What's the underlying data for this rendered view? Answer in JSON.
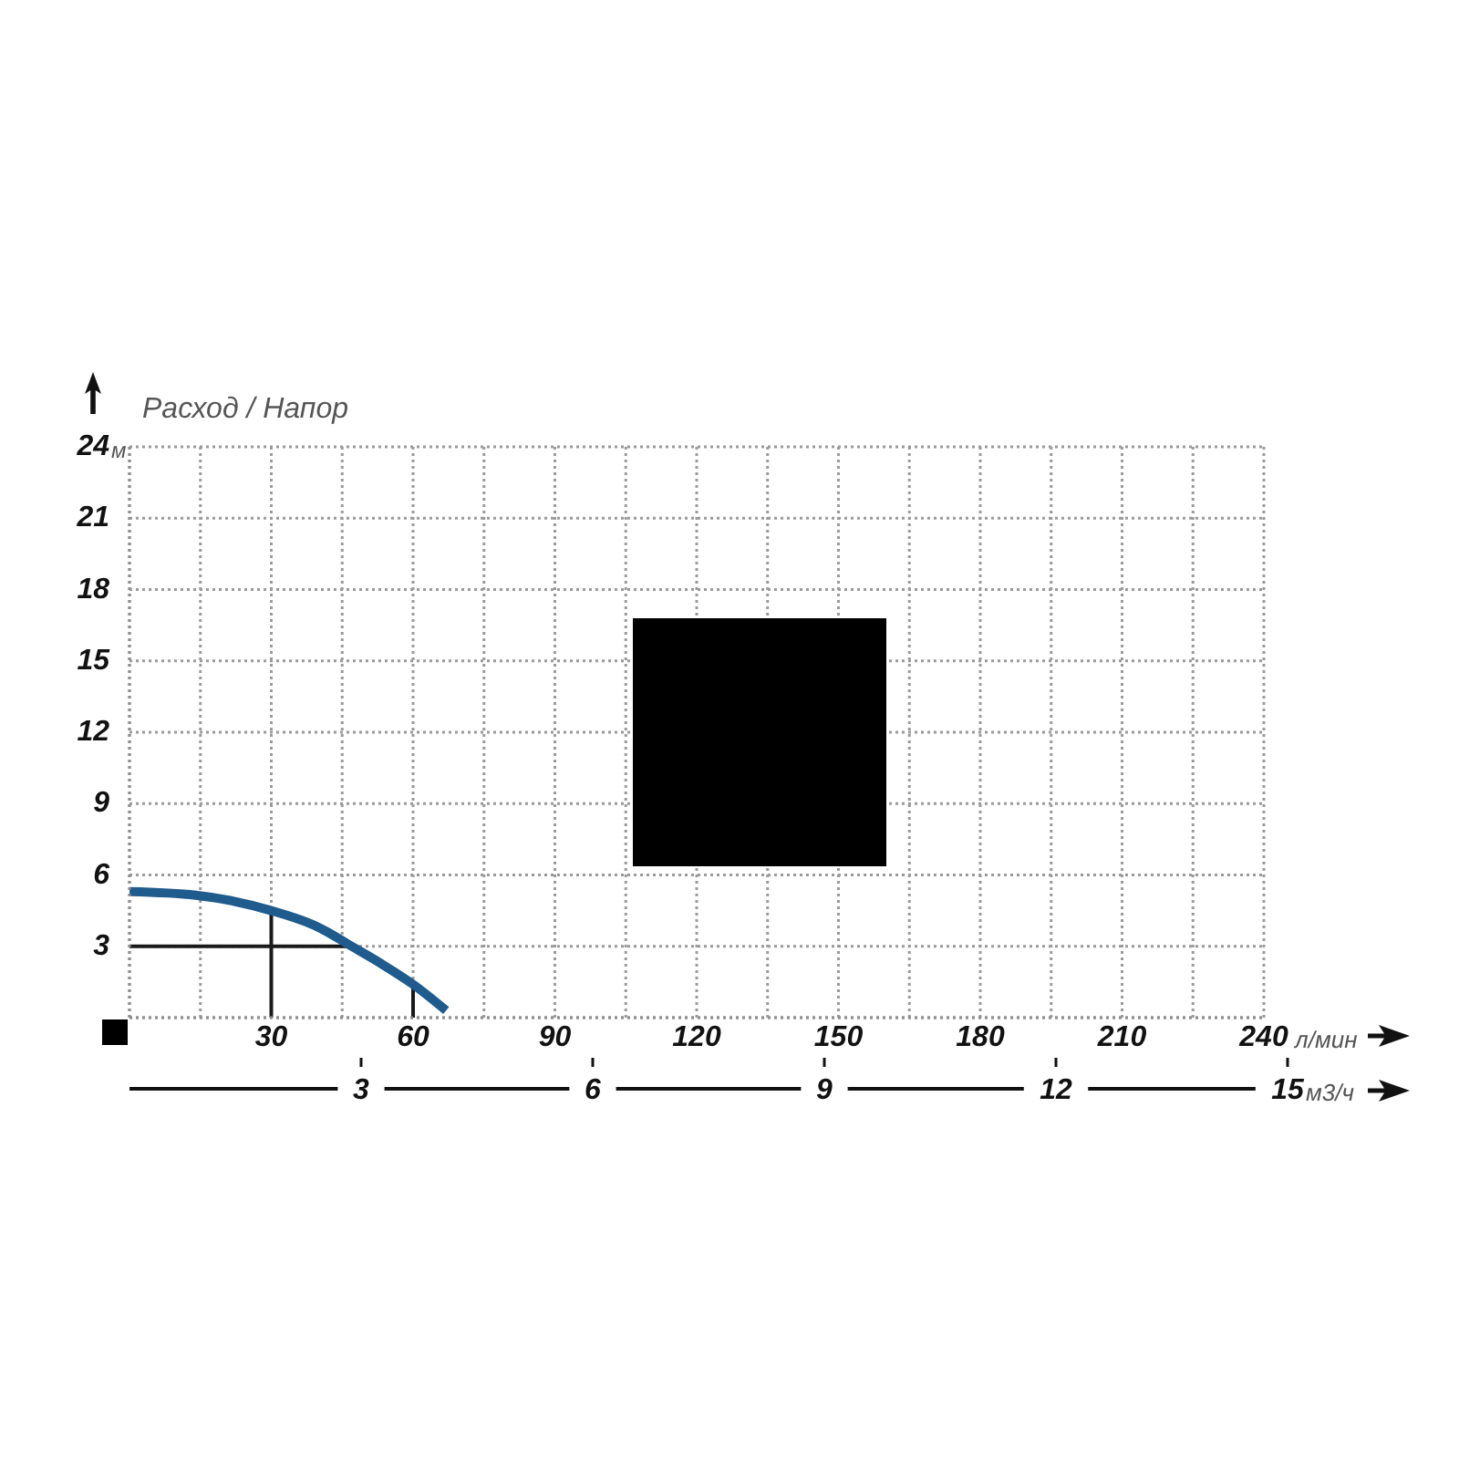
{
  "chart_data": {
    "type": "line",
    "title": "Расход / Напор",
    "xlabel": "л/мин",
    "ylabel": "м",
    "x2label": "м3/ч",
    "xlim": [
      0,
      240
    ],
    "xticks": [
      {
        "value": 15,
        "label": null
      },
      30,
      {
        "value": 45,
        "label": null
      },
      60,
      {
        "value": 75,
        "label": null
      },
      90,
      {
        "value": 105,
        "label": null
      },
      120,
      {
        "value": 135,
        "label": null
      },
      150,
      {
        "value": 165,
        "label": null
      },
      180,
      {
        "value": 195,
        "label": null
      },
      210,
      {
        "value": 225,
        "label": null
      },
      240
    ],
    "ylim": [
      0,
      24
    ],
    "yticks": [
      3,
      6,
      9,
      12,
      15,
      18,
      21,
      24
    ],
    "x2lim": [
      0,
      15
    ],
    "x2ticks": [
      3,
      6,
      9,
      12,
      15
    ],
    "grid": true,
    "series": [
      {
        "color": "#1a1a1a",
        "x": [
          0,
          47
        ],
        "values": [
          3,
          3
        ]
      },
      {
        "color": "#1a1a1a",
        "x": [
          30,
          30
        ],
        "values": [
          0,
          4.5
        ]
      },
      {
        "color": "#1a1a1a",
        "x": [
          60,
          60
        ],
        "values": [
          0,
          1.4
        ]
      },
      {
        "color": "#1f5b8c",
        "x": [
          0,
          14,
          30,
          40,
          47,
          53,
          60,
          67
        ],
        "values": [
          5.3,
          5.15,
          4.5,
          3.8,
          3.0,
          2.3,
          1.4,
          0.3
        ]
      }
    ]
  }
}
